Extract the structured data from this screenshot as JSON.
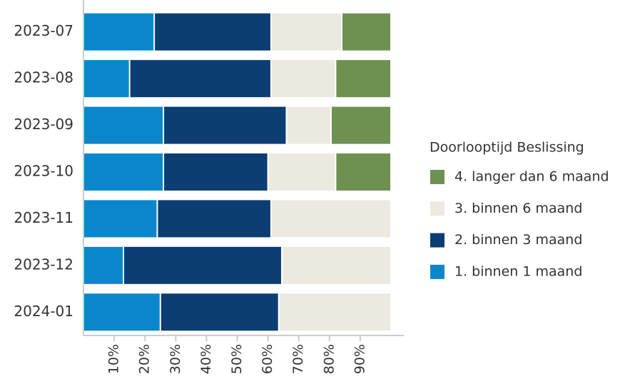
{
  "chart_data": {
    "type": "stacked_barh",
    "categories": [
      "2023-07",
      "2023-08",
      "2023-09",
      "2023-10",
      "2023-11",
      "2023-12",
      "2024-01"
    ],
    "series": [
      {
        "name": "1. binnen 1 maand",
        "color": "#0a87cc",
        "values": [
          23,
          15,
          26,
          26,
          24,
          13,
          25
        ]
      },
      {
        "name": "2. binnen 3 maand",
        "color": "#0c3d73",
        "values": [
          38,
          46,
          40,
          34,
          37,
          51.5,
          38.5
        ]
      },
      {
        "name": "3. binnen 6 maand",
        "color": "#eceae0",
        "values": [
          23,
          21,
          14.5,
          22,
          39,
          35.5,
          36.5
        ]
      },
      {
        "name": "4. langer dan 6 maand",
        "color": "#6e9152",
        "values": [
          16,
          18,
          19.5,
          18,
          0,
          0,
          0
        ]
      }
    ],
    "legend_title": "Doorlooptijd Beslissing",
    "legend": "right",
    "xlim": [
      0,
      100
    ],
    "xticks": [
      {
        "value": 10,
        "label": "10%"
      },
      {
        "value": 20,
        "label": "20%"
      },
      {
        "value": 30,
        "label": "30%"
      },
      {
        "value": 40,
        "label": "40%"
      },
      {
        "value": 50,
        "label": "50%"
      },
      {
        "value": 60,
        "label": "60%"
      },
      {
        "value": 70,
        "label": "70%"
      },
      {
        "value": 80,
        "label": "80%"
      },
      {
        "value": 90,
        "label": "90%"
      }
    ]
  }
}
